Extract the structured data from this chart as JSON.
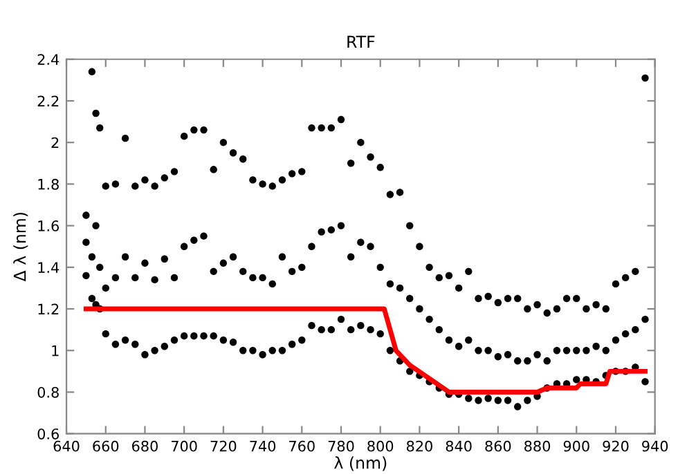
{
  "chart_data": {
    "type": "scatter",
    "title": "RTF",
    "xlabel": "λ (nm)",
    "ylabel": "Δ λ (nm)",
    "xlim": [
      640,
      940
    ],
    "xticks": [
      640,
      660,
      680,
      700,
      720,
      740,
      760,
      780,
      800,
      820,
      840,
      860,
      880,
      900,
      920,
      940
    ],
    "ylim": [
      0.6,
      2.4
    ],
    "yticks": [
      0.6,
      0.8,
      1,
      1.2,
      1.4,
      1.6,
      1.8,
      2,
      2.2,
      2.4
    ],
    "grid": false,
    "legend": false,
    "series": [
      {
        "marker": "circle",
        "color": "#000000",
        "x": [
          650,
          650,
          650,
          653,
          653,
          653,
          655,
          655,
          655,
          657,
          657,
          657,
          660,
          660,
          660,
          665,
          665,
          665,
          670,
          670,
          670,
          675,
          675,
          675,
          680,
          680,
          680,
          685,
          685,
          685,
          690,
          690,
          690,
          695,
          695,
          695,
          700,
          700,
          700,
          705,
          705,
          705,
          710,
          710,
          710,
          715,
          715,
          715,
          720,
          720,
          720,
          725,
          725,
          725,
          730,
          730,
          730,
          735,
          735,
          735,
          740,
          740,
          740,
          745,
          745,
          745,
          750,
          750,
          750,
          755,
          755,
          755,
          760,
          760,
          760,
          765,
          765,
          765,
          770,
          770,
          770,
          775,
          775,
          775,
          780,
          780,
          780,
          785,
          785,
          785,
          790,
          790,
          790,
          795,
          795,
          795,
          800,
          800,
          800,
          805,
          805,
          805,
          810,
          810,
          810,
          815,
          815,
          815,
          820,
          820,
          820,
          825,
          825,
          825,
          830,
          830,
          830,
          835,
          835,
          835,
          840,
          840,
          840,
          845,
          845,
          845,
          850,
          850,
          850,
          855,
          855,
          855,
          860,
          860,
          860,
          865,
          865,
          865,
          870,
          870,
          870,
          875,
          875,
          875,
          880,
          880,
          880,
          885,
          885,
          885,
          890,
          890,
          890,
          895,
          895,
          895,
          900,
          900,
          900,
          905,
          905,
          905,
          910,
          910,
          910,
          915,
          915,
          915,
          920,
          920,
          920,
          925,
          925,
          925,
          930,
          930,
          930,
          935,
          935,
          935
        ],
        "values": [
          1.65,
          1.52,
          1.36,
          2.34,
          1.45,
          1.25,
          2.14,
          1.6,
          1.22,
          2.07,
          1.4,
          1.2,
          1.79,
          1.3,
          1.08,
          1.8,
          1.35,
          1.03,
          2.02,
          1.45,
          1.05,
          1.79,
          1.35,
          1.03,
          1.82,
          1.42,
          0.98,
          1.79,
          1.34,
          1.0,
          1.83,
          1.44,
          1.02,
          1.86,
          1.35,
          1.05,
          2.03,
          1.5,
          1.07,
          2.06,
          1.53,
          1.07,
          2.06,
          1.55,
          1.07,
          1.87,
          1.38,
          1.07,
          2.0,
          1.42,
          1.05,
          1.95,
          1.45,
          1.04,
          1.92,
          1.38,
          1.0,
          1.82,
          1.35,
          1.0,
          1.8,
          1.35,
          0.98,
          1.79,
          1.32,
          1.0,
          1.82,
          1.45,
          1.0,
          1.85,
          1.38,
          1.03,
          1.86,
          1.4,
          1.05,
          2.07,
          1.5,
          1.12,
          2.07,
          1.57,
          1.1,
          2.07,
          1.58,
          1.1,
          2.11,
          1.6,
          1.15,
          1.9,
          1.45,
          1.1,
          2.0,
          1.52,
          1.12,
          1.93,
          1.5,
          1.1,
          1.88,
          1.4,
          1.08,
          1.75,
          1.32,
          1.0,
          1.76,
          1.3,
          0.95,
          1.6,
          1.25,
          0.9,
          1.5,
          1.2,
          0.88,
          1.4,
          1.15,
          0.85,
          1.35,
          1.1,
          0.82,
          1.36,
          1.05,
          0.79,
          1.3,
          1.02,
          0.79,
          1.38,
          1.05,
          0.77,
          1.25,
          1.0,
          0.76,
          1.26,
          1.0,
          0.77,
          1.23,
          0.97,
          0.76,
          1.25,
          0.98,
          0.76,
          1.25,
          0.95,
          0.73,
          1.2,
          0.95,
          0.76,
          1.22,
          0.98,
          0.78,
          1.18,
          0.95,
          0.82,
          1.2,
          1.0,
          0.84,
          1.25,
          1.0,
          0.84,
          1.25,
          1.0,
          0.86,
          1.2,
          1.0,
          0.86,
          1.22,
          1.02,
          0.85,
          1.2,
          1.0,
          0.88,
          1.32,
          1.05,
          0.9,
          1.35,
          1.08,
          0.9,
          1.38,
          1.1,
          0.92,
          2.31,
          1.15,
          0.85
        ]
      },
      {
        "type": "line",
        "color": "#ff0000",
        "marker": "none",
        "line_style": "solid",
        "x": [
          650,
          802,
          808,
          815,
          835,
          880,
          885,
          900,
          902,
          915,
          917,
          935
        ],
        "values": [
          1.2,
          1.2,
          1.0,
          0.93,
          0.8,
          0.8,
          0.82,
          0.82,
          0.84,
          0.84,
          0.9,
          0.9
        ]
      }
    ]
  }
}
